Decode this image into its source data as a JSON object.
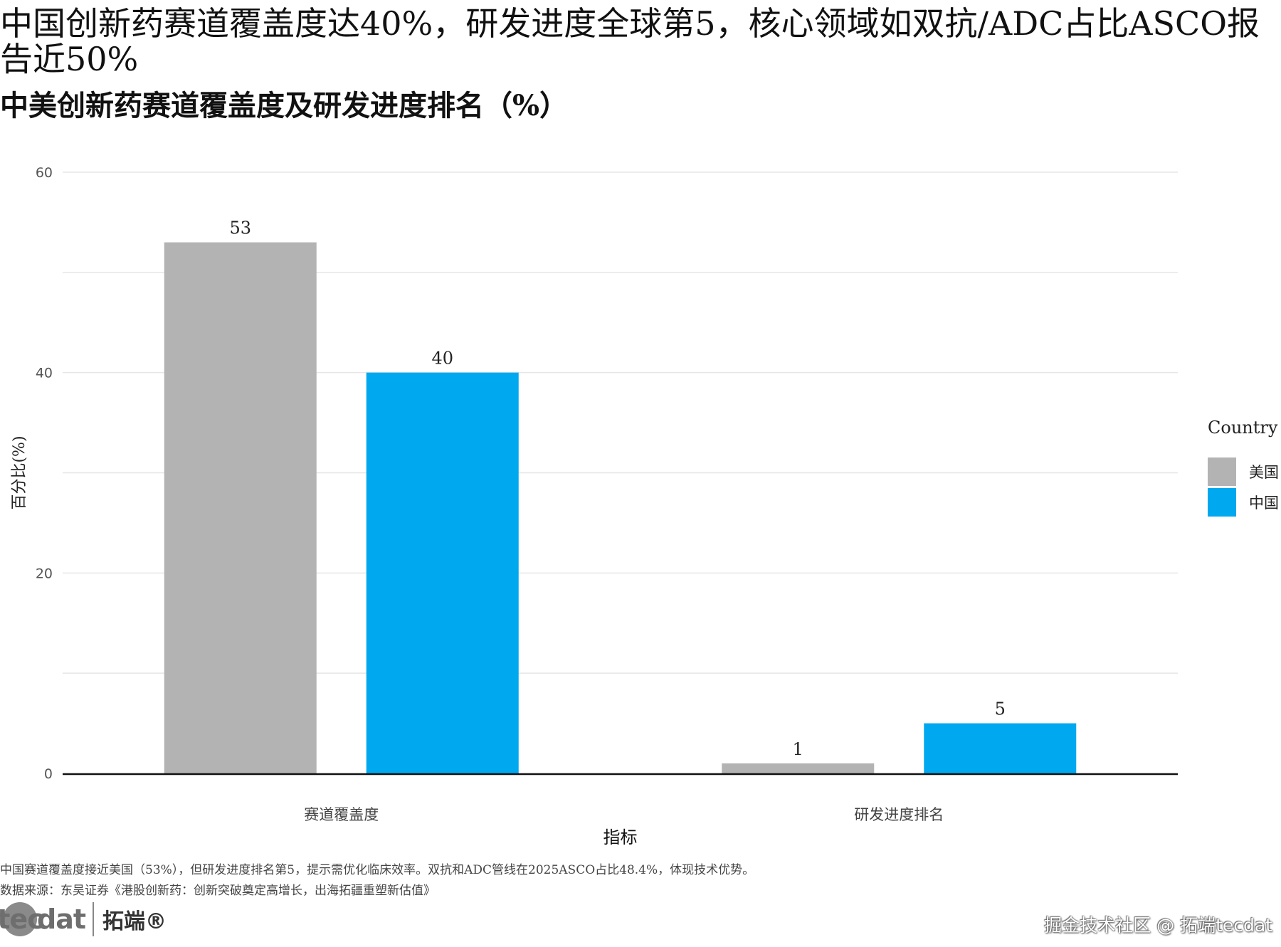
{
  "header": {
    "title": "中国创新药赛道覆盖度达40%，研发进度全球第5，核心领域如双抗/ADC占比ASCO报告近50%",
    "subtitle": "中美创新药赛道覆盖度及研发进度排名（%）"
  },
  "chart_data": {
    "type": "bar",
    "categories": [
      "赛道覆盖度",
      "研发进度排名"
    ],
    "series": [
      {
        "name": "美国",
        "values": [
          53,
          1
        ],
        "color": "#b3b3b3"
      },
      {
        "name": "中国",
        "values": [
          40,
          5
        ],
        "color": "#00a8f0"
      }
    ],
    "xlabel": "指标",
    "ylabel": "百分比(%)",
    "ylim": [
      0,
      60
    ],
    "yticks": [
      0,
      20,
      40,
      60
    ],
    "yticks_labels": [
      "0",
      "20",
      "40",
      "60"
    ],
    "grid": true,
    "legend": {
      "title": "Country",
      "position": "right"
    }
  },
  "footer": {
    "note": "中国赛道覆盖度接近美国（53%），但研发进度排名第5，提示需优化临床效率。双抗和ADC管线在2025ASCO占比48.4%，体现技术优势。",
    "source": "数据来源：东吴证券《港股创新药：创新突破奠定高增长，出海拓疆重塑新估值》"
  },
  "branding": {
    "logo_prefix": "tec",
    "logo_suffix": "dat",
    "logo_cn": "拓端®",
    "watermark": "掘金技术社区 @ 拓端tecdat"
  }
}
